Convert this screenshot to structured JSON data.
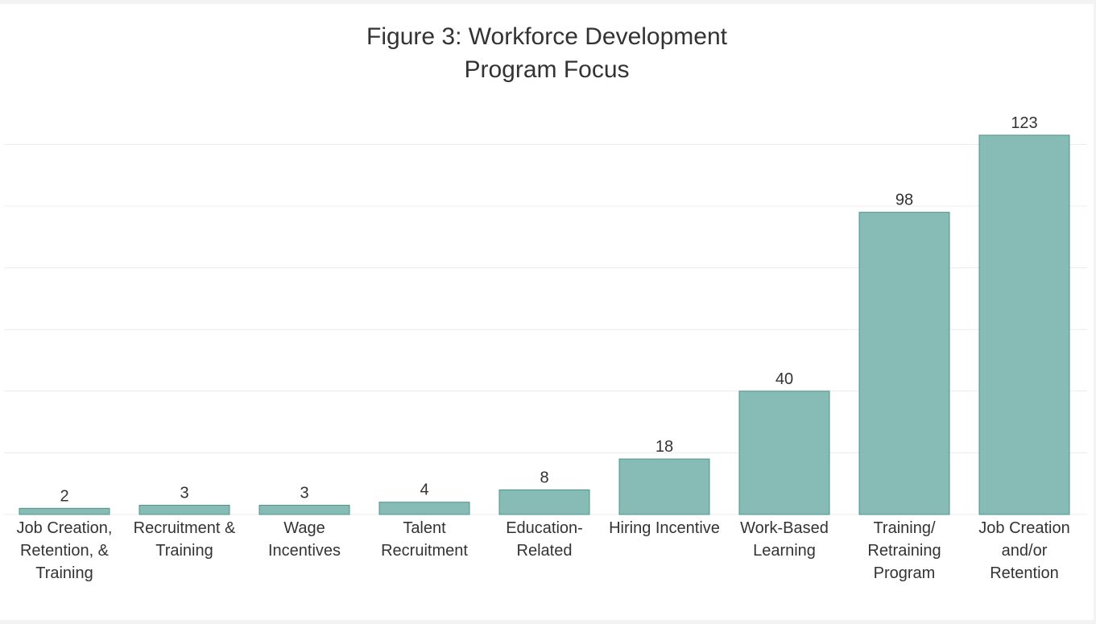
{
  "chart_data": {
    "type": "bar",
    "title_lines": [
      "Figure 3: Workforce Development",
      "Program Focus"
    ],
    "categories": [
      [
        "Job Creation,",
        "Retention, &",
        "Training"
      ],
      [
        "Recruitment &",
        "Training"
      ],
      [
        "Wage",
        "Incentives"
      ],
      [
        "Talent",
        "Recruitment"
      ],
      [
        "Education-",
        "Related"
      ],
      [
        "Hiring Incentive"
      ],
      [
        "Work-Based",
        "Learning"
      ],
      [
        "Training/",
        "Retraining",
        "Program"
      ],
      [
        "Job Creation",
        "and/or",
        "Retention"
      ]
    ],
    "values": [
      2,
      3,
      3,
      4,
      8,
      18,
      40,
      98,
      123
    ],
    "data_labels": [
      "2",
      "3",
      "3",
      "4",
      "8",
      "18",
      "40",
      "98",
      "123"
    ],
    "ylim": [
      0,
      137
    ],
    "gridlines": true,
    "legend": "none",
    "colors": {
      "bar_fill": "#86bcb5",
      "bar_stroke": "#4e9489",
      "grid": "#ececec",
      "text": "#333333"
    }
  }
}
